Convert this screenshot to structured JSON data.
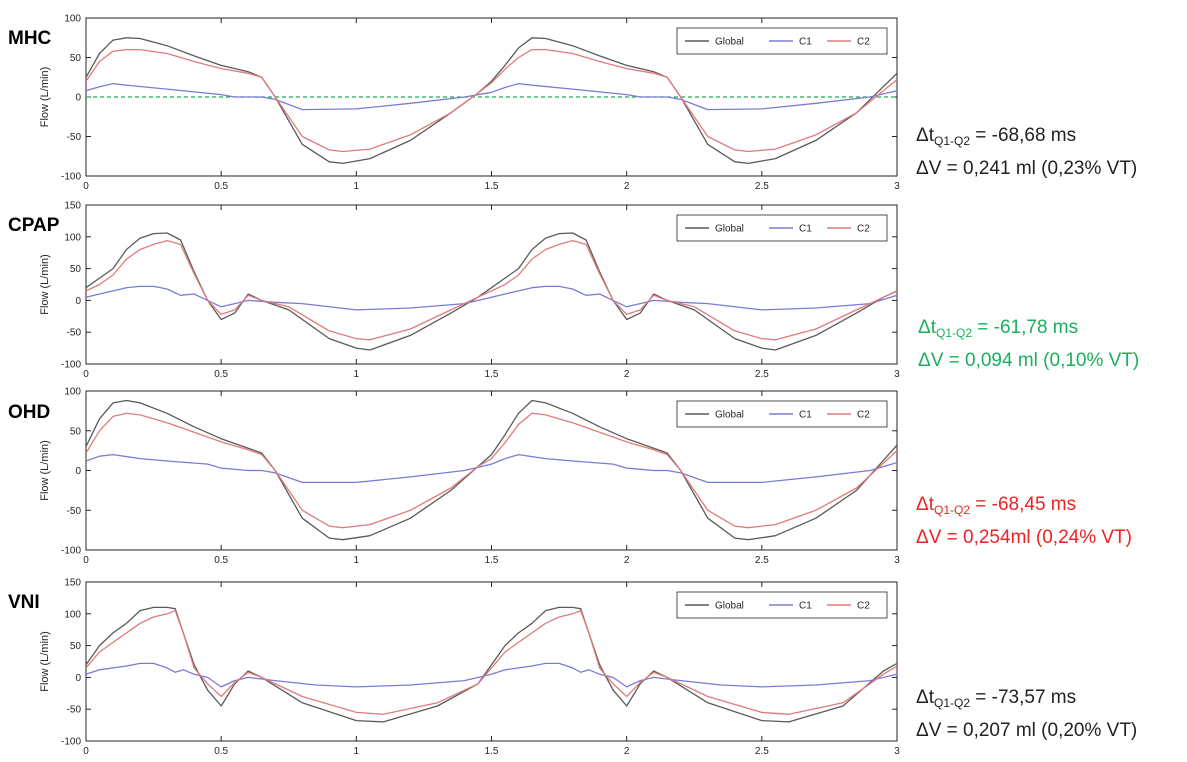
{
  "colors": {
    "global": "#5a5a5a",
    "c1": "#7b7bd6",
    "c2": "#e07b7b",
    "zero_ref": "#22aa55",
    "note_default": "#222222",
    "note_green": "#1aaf5d",
    "note_red": "#ee2222"
  },
  "chart_data": [
    {
      "type": "line",
      "title": "MHC",
      "xlabel": "",
      "ylabel": "Flow (L/min)",
      "xlim": [
        0,
        3
      ],
      "ylim": [
        -100,
        100
      ],
      "xticks": [
        "0",
        "0.5",
        "1",
        "1.5",
        "2",
        "2.5",
        "3"
      ],
      "yticks": [
        "-100",
        "-50",
        "0",
        "50",
        "100"
      ],
      "legend": [
        "Global",
        "C1",
        "C2"
      ],
      "legend_position": "top-right",
      "zero_reference_line": true,
      "series": [
        {
          "name": "Global",
          "x": [
            0,
            0.05,
            0.1,
            0.15,
            0.2,
            0.3,
            0.4,
            0.5,
            0.6,
            0.65,
            0.7,
            0.8,
            0.9,
            0.95,
            1.05,
            1.2,
            1.35,
            1.45,
            1.5,
            1.55,
            1.6,
            1.65,
            1.7,
            1.8,
            1.9,
            2.0,
            2.1,
            2.15,
            2.2,
            2.3,
            2.4,
            2.45,
            2.55,
            2.7,
            2.85,
            3.0
          ],
          "y": [
            25,
            55,
            72,
            75,
            74,
            65,
            52,
            40,
            32,
            25,
            0,
            -60,
            -82,
            -84,
            -78,
            -55,
            -20,
            5,
            20,
            40,
            62,
            75,
            74,
            65,
            52,
            40,
            32,
            25,
            0,
            -60,
            -82,
            -84,
            -78,
            -55,
            -20,
            30
          ]
        },
        {
          "name": "C1",
          "x": [
            0,
            0.05,
            0.1,
            0.15,
            0.3,
            0.5,
            0.55,
            0.65,
            0.7,
            0.8,
            1.0,
            1.2,
            1.4,
            1.5,
            1.55,
            1.6,
            1.65,
            1.8,
            2.0,
            2.05,
            2.15,
            2.2,
            2.3,
            2.5,
            2.7,
            2.9,
            3.0
          ],
          "y": [
            8,
            13,
            17,
            15,
            10,
            3,
            0,
            0,
            -3,
            -16,
            -15,
            -8,
            0,
            6,
            12,
            17,
            15,
            10,
            3,
            0,
            0,
            -3,
            -16,
            -15,
            -8,
            0,
            8
          ]
        },
        {
          "name": "C2",
          "x": [
            0,
            0.05,
            0.1,
            0.15,
            0.2,
            0.3,
            0.4,
            0.5,
            0.6,
            0.65,
            0.7,
            0.8,
            0.9,
            0.95,
            1.05,
            1.2,
            1.35,
            1.45,
            1.5,
            1.55,
            1.6,
            1.65,
            1.7,
            1.8,
            1.9,
            2.0,
            2.1,
            2.15,
            2.2,
            2.3,
            2.4,
            2.45,
            2.55,
            2.7,
            2.85,
            3.0
          ],
          "y": [
            20,
            45,
            58,
            60,
            60,
            55,
            45,
            36,
            30,
            25,
            0,
            -50,
            -67,
            -69,
            -66,
            -48,
            -20,
            5,
            18,
            35,
            50,
            60,
            60,
            55,
            45,
            36,
            30,
            25,
            0,
            -50,
            -67,
            -69,
            -66,
            -48,
            -20,
            22
          ]
        }
      ]
    },
    {
      "type": "line",
      "title": "CPAP",
      "xlabel": "",
      "ylabel": "Flow (L/min)",
      "xlim": [
        0,
        3
      ],
      "ylim": [
        -100,
        150
      ],
      "xticks": [
        "0",
        "0.5",
        "1",
        "1.5",
        "2",
        "2.5",
        "3"
      ],
      "yticks": [
        "-100",
        "-50",
        "0",
        "50",
        "100",
        "150"
      ],
      "legend": [
        "Global",
        "C1",
        "C2"
      ],
      "legend_position": "top-right",
      "zero_reference_line": false,
      "series": [
        {
          "name": "Global",
          "x": [
            0,
            0.05,
            0.1,
            0.15,
            0.2,
            0.25,
            0.3,
            0.35,
            0.4,
            0.45,
            0.5,
            0.55,
            0.6,
            0.65,
            0.75,
            0.9,
            1.0,
            1.05,
            1.2,
            1.35,
            1.45,
            1.5,
            1.55,
            1.6,
            1.65,
            1.7,
            1.75,
            1.8,
            1.85,
            1.9,
            1.95,
            2.0,
            2.05,
            2.1,
            2.15,
            2.25,
            2.4,
            2.5,
            2.55,
            2.7,
            2.85,
            2.95,
            3.0
          ],
          "y": [
            20,
            35,
            50,
            80,
            98,
            105,
            106,
            95,
            45,
            0,
            -30,
            -20,
            10,
            0,
            -15,
            -60,
            -75,
            -78,
            -55,
            -20,
            5,
            20,
            35,
            50,
            80,
            98,
            105,
            106,
            95,
            45,
            0,
            -30,
            -20,
            10,
            0,
            -15,
            -60,
            -75,
            -78,
            -55,
            -20,
            5,
            15
          ]
        },
        {
          "name": "C1",
          "x": [
            0,
            0.05,
            0.1,
            0.15,
            0.2,
            0.25,
            0.3,
            0.35,
            0.4,
            0.45,
            0.5,
            0.55,
            0.6,
            0.7,
            0.8,
            1.0,
            1.2,
            1.4,
            1.5,
            1.55,
            1.6,
            1.65,
            1.7,
            1.75,
            1.8,
            1.85,
            1.9,
            1.95,
            2.0,
            2.05,
            2.1,
            2.2,
            2.3,
            2.5,
            2.7,
            2.9,
            3.0
          ],
          "y": [
            5,
            10,
            15,
            20,
            22,
            22,
            18,
            8,
            10,
            0,
            -10,
            -5,
            0,
            -3,
            -5,
            -15,
            -12,
            -5,
            5,
            10,
            15,
            20,
            22,
            22,
            18,
            8,
            10,
            0,
            -10,
            -5,
            0,
            -3,
            -5,
            -15,
            -12,
            -5,
            8
          ]
        },
        {
          "name": "C2",
          "x": [
            0,
            0.05,
            0.1,
            0.15,
            0.2,
            0.25,
            0.3,
            0.35,
            0.4,
            0.45,
            0.5,
            0.55,
            0.6,
            0.65,
            0.75,
            0.9,
            1.0,
            1.05,
            1.2,
            1.35,
            1.45,
            1.5,
            1.55,
            1.6,
            1.65,
            1.7,
            1.75,
            1.8,
            1.85,
            1.9,
            1.95,
            2.0,
            2.05,
            2.1,
            2.15,
            2.25,
            2.4,
            2.5,
            2.55,
            2.7,
            2.85,
            2.95,
            3.0
          ],
          "y": [
            15,
            25,
            40,
            65,
            80,
            88,
            94,
            88,
            42,
            0,
            -22,
            -15,
            8,
            0,
            -10,
            -48,
            -60,
            -62,
            -45,
            -15,
            5,
            15,
            25,
            40,
            65,
            80,
            88,
            94,
            88,
            42,
            0,
            -22,
            -15,
            8,
            0,
            -10,
            -48,
            -60,
            -62,
            -45,
            -15,
            5,
            15
          ]
        }
      ]
    },
    {
      "type": "line",
      "title": "OHD",
      "xlabel": "",
      "ylabel": "Flow (L/min)",
      "xlim": [
        0,
        3
      ],
      "ylim": [
        -100,
        100
      ],
      "xticks": [
        "0",
        "0.5",
        "1",
        "1.5",
        "2",
        "2.5",
        "3"
      ],
      "yticks": [
        "-100",
        "-50",
        "0",
        "50",
        "100"
      ],
      "legend": [
        "Global",
        "C1",
        "C2"
      ],
      "legend_position": "top-right",
      "zero_reference_line": false,
      "series": [
        {
          "name": "Global",
          "x": [
            0,
            0.05,
            0.1,
            0.15,
            0.2,
            0.3,
            0.4,
            0.5,
            0.6,
            0.65,
            0.7,
            0.8,
            0.9,
            0.95,
            1.05,
            1.2,
            1.35,
            1.45,
            1.5,
            1.55,
            1.6,
            1.65,
            1.7,
            1.8,
            1.9,
            2.0,
            2.1,
            2.15,
            2.2,
            2.3,
            2.4,
            2.45,
            2.55,
            2.7,
            2.85,
            3.0
          ],
          "y": [
            30,
            65,
            85,
            88,
            85,
            72,
            55,
            40,
            28,
            22,
            0,
            -60,
            -85,
            -87,
            -82,
            -60,
            -25,
            5,
            20,
            45,
            72,
            88,
            85,
            72,
            55,
            40,
            28,
            22,
            0,
            -60,
            -85,
            -87,
            -82,
            -60,
            -25,
            32
          ]
        },
        {
          "name": "C1",
          "x": [
            0,
            0.05,
            0.1,
            0.2,
            0.3,
            0.45,
            0.5,
            0.6,
            0.65,
            0.7,
            0.8,
            1.0,
            1.2,
            1.4,
            1.5,
            1.55,
            1.6,
            1.7,
            1.8,
            1.95,
            2.0,
            2.1,
            2.15,
            2.2,
            2.3,
            2.5,
            2.7,
            2.9,
            3.0
          ],
          "y": [
            12,
            18,
            20,
            15,
            12,
            8,
            3,
            0,
            0,
            -3,
            -15,
            -15,
            -8,
            0,
            8,
            15,
            20,
            15,
            12,
            8,
            3,
            0,
            0,
            -3,
            -15,
            -15,
            -8,
            0,
            10
          ]
        },
        {
          "name": "C2",
          "x": [
            0,
            0.05,
            0.1,
            0.15,
            0.2,
            0.3,
            0.4,
            0.5,
            0.6,
            0.65,
            0.7,
            0.8,
            0.9,
            0.95,
            1.05,
            1.2,
            1.35,
            1.45,
            1.5,
            1.55,
            1.6,
            1.65,
            1.7,
            1.8,
            1.9,
            2.0,
            2.1,
            2.15,
            2.2,
            2.3,
            2.4,
            2.45,
            2.55,
            2.7,
            2.85,
            3.0
          ],
          "y": [
            22,
            50,
            68,
            72,
            70,
            60,
            48,
            36,
            26,
            20,
            0,
            -50,
            -70,
            -72,
            -68,
            -50,
            -22,
            5,
            15,
            35,
            58,
            72,
            70,
            60,
            48,
            36,
            26,
            20,
            0,
            -50,
            -70,
            -72,
            -68,
            -50,
            -22,
            25
          ]
        }
      ]
    },
    {
      "type": "line",
      "title": "VNI",
      "xlabel": "",
      "ylabel": "Flow (L/min)",
      "xlim": [
        0,
        3
      ],
      "ylim": [
        -100,
        150
      ],
      "xticks": [
        "0",
        "0.5",
        "1",
        "1.5",
        "2",
        "2.5",
        "3"
      ],
      "yticks": [
        "-100",
        "-50",
        "0",
        "50",
        "100",
        "150"
      ],
      "legend": [
        "Global",
        "C1",
        "C2"
      ],
      "legend_position": "top-right",
      "zero_reference_line": false,
      "series": [
        {
          "name": "Global",
          "x": [
            0,
            0.05,
            0.1,
            0.15,
            0.2,
            0.25,
            0.3,
            0.33,
            0.36,
            0.4,
            0.45,
            0.5,
            0.55,
            0.6,
            0.65,
            0.8,
            1.0,
            1.1,
            1.3,
            1.45,
            1.5,
            1.55,
            1.6,
            1.65,
            1.7,
            1.75,
            1.8,
            1.83,
            1.86,
            1.9,
            1.95,
            2.0,
            2.05,
            2.1,
            2.15,
            2.3,
            2.5,
            2.6,
            2.8,
            2.95,
            3.0
          ],
          "y": [
            20,
            50,
            70,
            85,
            105,
            110,
            110,
            108,
            70,
            20,
            -20,
            -45,
            -10,
            10,
            0,
            -40,
            -68,
            -70,
            -45,
            -10,
            20,
            50,
            70,
            85,
            105,
            110,
            110,
            108,
            70,
            20,
            -20,
            -45,
            -10,
            10,
            0,
            -40,
            -68,
            -70,
            -45,
            10,
            22
          ]
        },
        {
          "name": "C1",
          "x": [
            0,
            0.05,
            0.1,
            0.15,
            0.2,
            0.25,
            0.3,
            0.33,
            0.36,
            0.4,
            0.45,
            0.5,
            0.55,
            0.6,
            0.7,
            0.85,
            1.0,
            1.2,
            1.4,
            1.5,
            1.55,
            1.6,
            1.65,
            1.7,
            1.75,
            1.8,
            1.83,
            1.86,
            1.9,
            1.95,
            2.0,
            2.05,
            2.1,
            2.2,
            2.35,
            2.5,
            2.7,
            2.9,
            3.0
          ],
          "y": [
            5,
            12,
            15,
            18,
            22,
            22,
            15,
            8,
            12,
            5,
            0,
            -15,
            -5,
            0,
            -5,
            -12,
            -15,
            -12,
            -5,
            5,
            12,
            15,
            18,
            22,
            22,
            15,
            8,
            12,
            5,
            0,
            -15,
            -5,
            0,
            -5,
            -12,
            -15,
            -12,
            -5,
            5
          ]
        },
        {
          "name": "C2",
          "x": [
            0,
            0.05,
            0.1,
            0.15,
            0.2,
            0.25,
            0.3,
            0.33,
            0.36,
            0.4,
            0.45,
            0.5,
            0.55,
            0.6,
            0.65,
            0.8,
            1.0,
            1.1,
            1.3,
            1.45,
            1.5,
            1.55,
            1.6,
            1.65,
            1.7,
            1.75,
            1.8,
            1.83,
            1.86,
            1.9,
            1.95,
            2.0,
            2.05,
            2.1,
            2.15,
            2.3,
            2.5,
            2.6,
            2.8,
            2.95,
            3.0
          ],
          "y": [
            15,
            40,
            55,
            70,
            85,
            95,
            100,
            105,
            70,
            15,
            -10,
            -30,
            -8,
            8,
            0,
            -30,
            -55,
            -58,
            -40,
            -10,
            15,
            40,
            55,
            70,
            85,
            95,
            100,
            105,
            70,
            15,
            -10,
            -30,
            -8,
            8,
            0,
            -30,
            -55,
            -58,
            -40,
            5,
            18
          ]
        }
      ]
    }
  ],
  "annotations": [
    {
      "delta_t_prefix": "Δt",
      "delta_t_sub": "Q1-Q2",
      "delta_t_value": " = -68,68 ms",
      "delta_v": "ΔV = 0,241 ml (0,23% VT)",
      "color": "#222222"
    },
    {
      "delta_t_prefix": "Δt",
      "delta_t_sub": "Q1-Q2",
      "delta_t_value": " = -61,78 ms",
      "delta_v": "ΔV = 0,094 ml (0,10% VT)",
      "color": "#1aaf5d"
    },
    {
      "delta_t_prefix": "Δt",
      "delta_t_sub": "Q1-Q2",
      "delta_t_value": " = -68,45 ms",
      "delta_v": "ΔV = 0,254ml (0,24% VT)",
      "color": "#ee2222"
    },
    {
      "delta_t_prefix": "Δt",
      "delta_t_sub": "Q1-Q2",
      "delta_t_value": " = -73,57 ms",
      "delta_v": "ΔV = 0,207 ml (0,20% VT)",
      "color": "#222222"
    }
  ]
}
